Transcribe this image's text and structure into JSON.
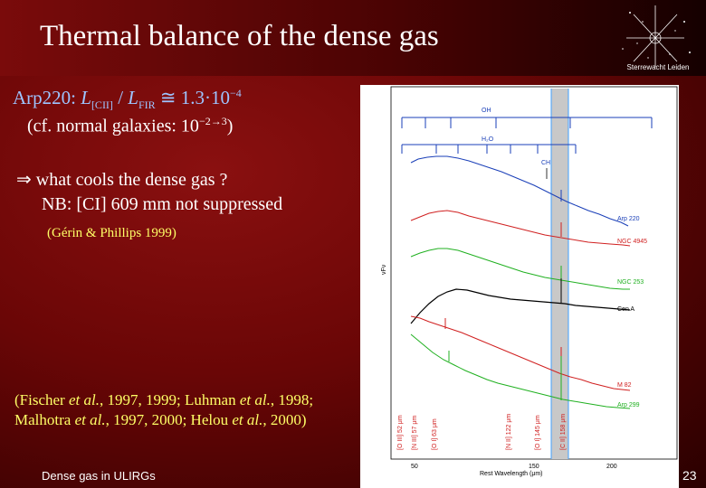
{
  "slide": {
    "title": "Thermal balance of the dense gas",
    "line1": {
      "prefix": "Arp220: ",
      "L": "L",
      "sub_cii": "[CII]",
      "slash": " / ",
      "L2": "L",
      "sub_fir": "FIR",
      "value": " ≅ 1.3·10",
      "exp": "−4"
    },
    "line2": {
      "text": "(cf. normal galaxies: 10",
      "exp": "−2→3",
      "close": ")"
    },
    "line3": "⇒ what cools the dense gas ?",
    "line4": "NB: [CI] 609 mm not suppressed",
    "line5": "(Gérin & Phillips 1999)",
    "refs": {
      "r1": "(Fischer ",
      "etal1": "et al.",
      "r2": ", 1997, 1999; Luhman ",
      "etal2": "et al.",
      "r3": ", 1998; Malhotra ",
      "etal3": "et al.",
      "r4": ", 1997, 2000; Helou ",
      "etal4": "et al.",
      "r5": ", 2000)"
    },
    "footer": "Dense gas in ULIRGs",
    "page_number": "23",
    "logo_text": "Sterrewacht Leiden"
  },
  "figure": {
    "molecule_labels": {
      "oh": "OH",
      "h2o": "H₂O",
      "ch": "CH"
    },
    "spectrum_labels": [
      "Arp 220",
      "NGC 4945",
      "NGC 253",
      "Cen A",
      "M 82",
      "Arp 299"
    ],
    "ylabel": "νFν",
    "xlabel": "Rest Wavelength (μm)",
    "xticks": [
      "50",
      "150",
      "200"
    ],
    "line_labels": [
      "[O III] 52 μm",
      "[N III] 57 μm",
      "[O I] 63 μm",
      "[N II] 122 μm",
      "[O I] 145 μm",
      "[C II] 158 μm"
    ],
    "colors": {
      "arp220": "#1a3fb8",
      "ngc4945": "#d02020",
      "ngc253": "#20b020",
      "cena": "#000000",
      "m82": "#d02020",
      "arp299": "#20b020",
      "band": "#bcbcbc",
      "band_edge": "#40a0ff"
    }
  }
}
